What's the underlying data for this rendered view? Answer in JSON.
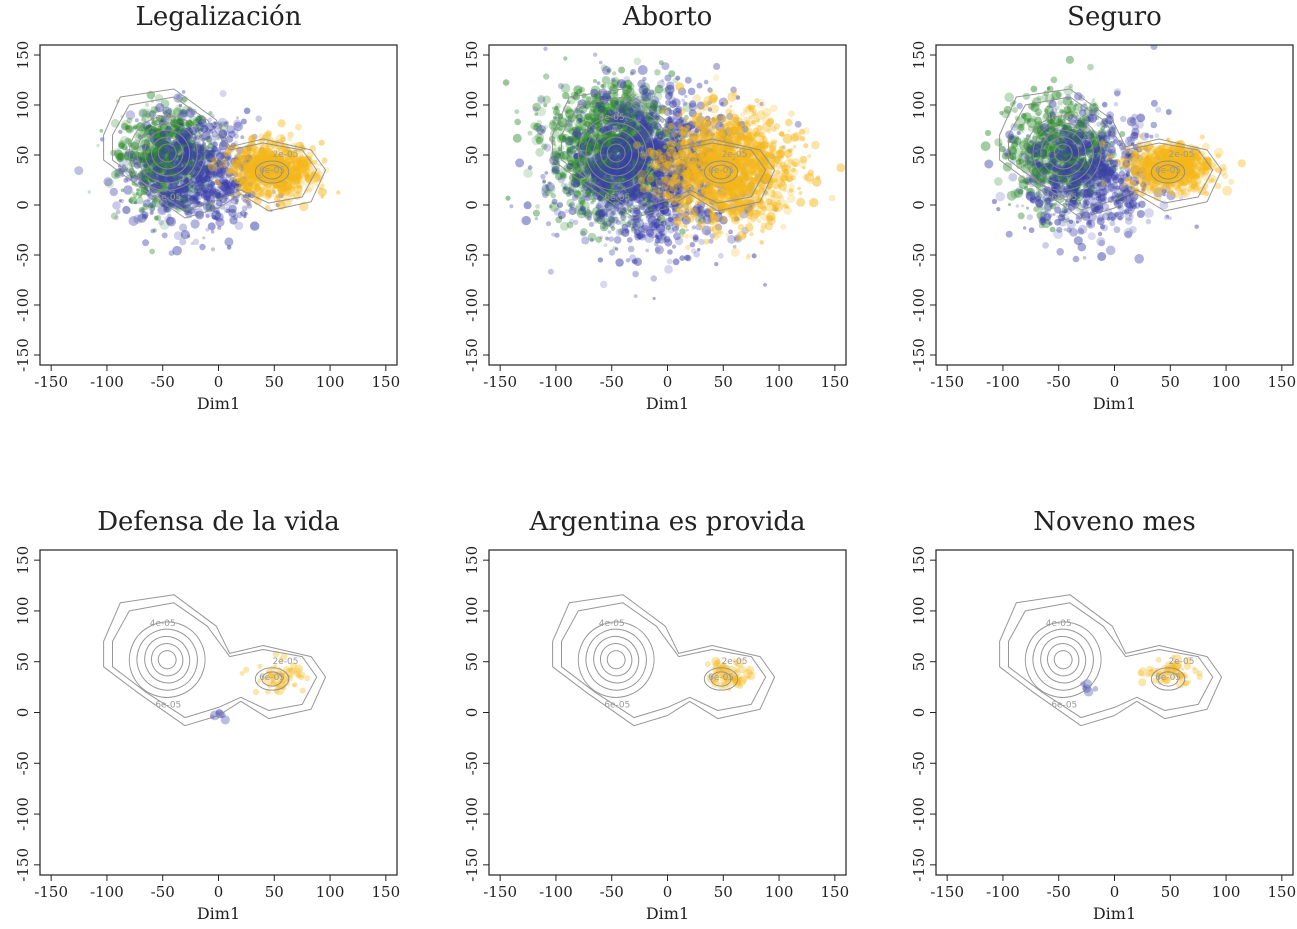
{
  "colors": {
    "green": "#2e8b2e",
    "blue": "#3a3fa8",
    "yellow": "#f5b719",
    "contour": "#8c8c8c",
    "frame": "#222222"
  },
  "chart_data": [
    {
      "type": "scatter",
      "title": "Legalización",
      "xlabel": "Dim1",
      "ylabel": "",
      "xlim": [
        -160,
        160
      ],
      "ylim": [
        -160,
        160
      ],
      "xticks": [
        -150,
        -100,
        -50,
        0,
        50,
        100,
        150
      ],
      "yticks": [
        -150,
        -100,
        -50,
        0,
        50,
        100,
        150
      ],
      "tick_labels": [
        "-150",
        "-100",
        "-50",
        "0",
        "50",
        "100",
        "150"
      ],
      "series": [
        {
          "color": "green",
          "center": [
            -48,
            50
          ],
          "spread": [
            20,
            24
          ],
          "density": "dense"
        },
        {
          "color": "blue",
          "center": [
            -20,
            30
          ],
          "spread": [
            28,
            28
          ],
          "density": "dense"
        },
        {
          "color": "yellow",
          "center": [
            50,
            35
          ],
          "spread": [
            18,
            13
          ],
          "density": "dense"
        }
      ],
      "contours": {
        "visible": true,
        "levels": [
          "2e-05",
          "4e-05",
          "6e-05"
        ]
      }
    },
    {
      "type": "scatter",
      "title": "Aborto",
      "xlabel": "Dim1",
      "ylabel": "",
      "xlim": [
        -160,
        160
      ],
      "ylim": [
        -160,
        160
      ],
      "xticks": [
        -150,
        -100,
        -50,
        0,
        50,
        100,
        150
      ],
      "yticks": [
        -150,
        -100,
        -50,
        0,
        50,
        100,
        150
      ],
      "tick_labels": [
        "-150",
        "-100",
        "-50",
        "0",
        "50",
        "100",
        "150"
      ],
      "series": [
        {
          "color": "green",
          "center": [
            -50,
            55
          ],
          "spread": [
            28,
            32
          ],
          "density": "very dense"
        },
        {
          "color": "blue",
          "center": [
            -15,
            35
          ],
          "spread": [
            40,
            38
          ],
          "density": "very dense"
        },
        {
          "color": "yellow",
          "center": [
            55,
            35
          ],
          "spread": [
            28,
            28
          ],
          "density": "very dense"
        }
      ],
      "contours": {
        "visible": true,
        "levels": [
          "2e-05",
          "4e-05",
          "6e-05"
        ]
      }
    },
    {
      "type": "scatter",
      "title": "Seguro",
      "xlabel": "Dim1",
      "ylabel": "",
      "xlim": [
        -160,
        160
      ],
      "ylim": [
        -160,
        160
      ],
      "xticks": [
        -150,
        -100,
        -50,
        0,
        50,
        100,
        150
      ],
      "yticks": [
        -150,
        -100,
        -50,
        0,
        50,
        100,
        150
      ],
      "tick_labels": [
        "-150",
        "-100",
        "-50",
        "0",
        "50",
        "100",
        "150"
      ],
      "series": [
        {
          "color": "green",
          "center": [
            -48,
            52
          ],
          "spread": [
            22,
            26
          ],
          "density": "dense"
        },
        {
          "color": "blue",
          "center": [
            -22,
            30
          ],
          "spread": [
            30,
            30
          ],
          "density": "dense"
        },
        {
          "color": "yellow",
          "center": [
            50,
            38
          ],
          "spread": [
            18,
            11
          ],
          "density": "dense"
        }
      ],
      "contours": {
        "visible": true,
        "levels": [
          "2e-05",
          "4e-05",
          "6e-05"
        ]
      }
    },
    {
      "type": "scatter",
      "title": "Defensa de la vida",
      "xlabel": "Dim1",
      "ylabel": "",
      "xlim": [
        -160,
        160
      ],
      "ylim": [
        -160,
        160
      ],
      "xticks": [
        -150,
        -100,
        -50,
        0,
        50,
        100,
        150
      ],
      "yticks": [
        -150,
        -100,
        -50,
        0,
        50,
        100,
        150
      ],
      "tick_labels": [
        "-150",
        "-100",
        "-50",
        "0",
        "50",
        "100",
        "150"
      ],
      "series": [
        {
          "color": "yellow",
          "center": [
            55,
            35
          ],
          "spread": [
            12,
            8
          ],
          "density": "sparse"
        },
        {
          "color": "blue",
          "center": [
            0,
            -5
          ],
          "spread": [
            4,
            4
          ],
          "density": "few"
        }
      ],
      "contours": {
        "visible": true,
        "levels": [
          "2e-05",
          "4e-05",
          "6e-05"
        ]
      }
    },
    {
      "type": "scatter",
      "title": "Argentina es provida",
      "xlabel": "Dim1",
      "ylabel": "",
      "xlim": [
        -160,
        160
      ],
      "ylim": [
        -160,
        160
      ],
      "xticks": [
        -150,
        -100,
        -50,
        0,
        50,
        100,
        150
      ],
      "yticks": [
        -150,
        -100,
        -50,
        0,
        50,
        100,
        150
      ],
      "tick_labels": [
        "-150",
        "-100",
        "-50",
        "0",
        "50",
        "100",
        "150"
      ],
      "series": [
        {
          "color": "yellow",
          "center": [
            55,
            38
          ],
          "spread": [
            11,
            7
          ],
          "density": "sparse"
        }
      ],
      "contours": {
        "visible": true,
        "levels": [
          "2e-05",
          "4e-05",
          "6e-05"
        ]
      }
    },
    {
      "type": "scatter",
      "title": "Noveno mes",
      "xlabel": "Dim1",
      "ylabel": "",
      "xlim": [
        -160,
        160
      ],
      "ylim": [
        -160,
        160
      ],
      "xticks": [
        -150,
        -100,
        -50,
        0,
        50,
        100,
        150
      ],
      "yticks": [
        -150,
        -100,
        -50,
        0,
        50,
        100,
        150
      ],
      "tick_labels": [
        "-150",
        "-100",
        "-50",
        "0",
        "50",
        "100",
        "150"
      ],
      "series": [
        {
          "color": "yellow",
          "center": [
            52,
            38
          ],
          "spread": [
            11,
            7
          ],
          "density": "sparse"
        },
        {
          "color": "blue",
          "center": [
            -27,
            25
          ],
          "spread": [
            3,
            3
          ],
          "density": "few"
        }
      ],
      "contours": {
        "visible": true,
        "levels": [
          "2e-05",
          "4e-05",
          "6e-05"
        ]
      }
    }
  ]
}
